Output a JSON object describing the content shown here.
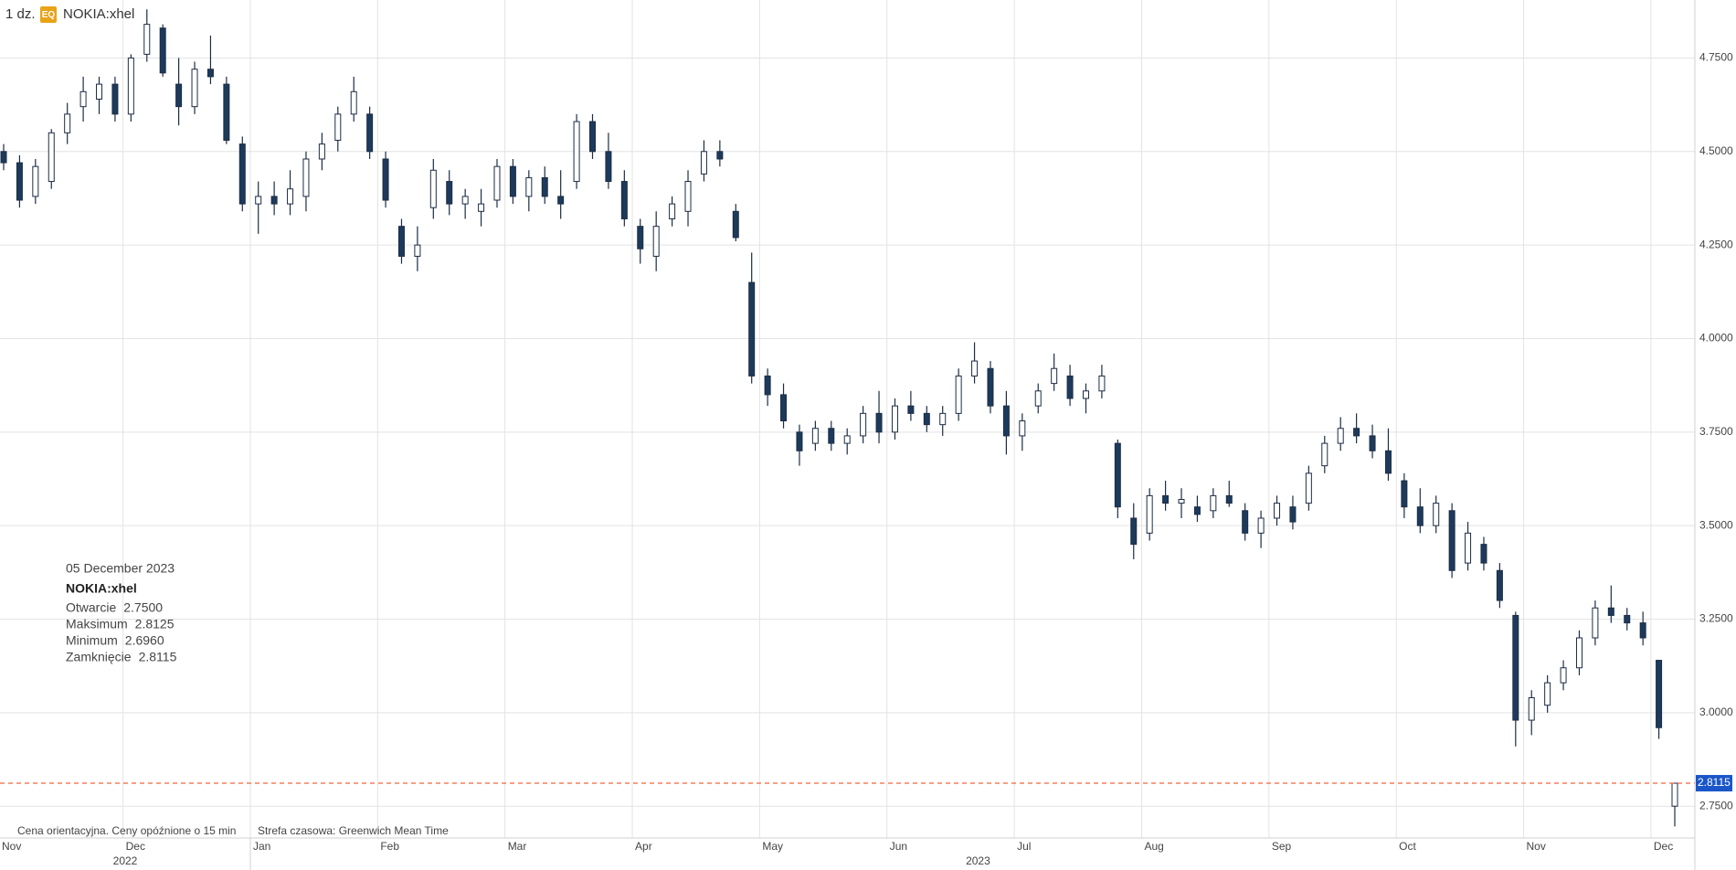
{
  "chart_data": {
    "type": "candlestick",
    "header": {
      "interval": "1 dz.",
      "badge": "EQ",
      "symbol": "NOKIA:xhel"
    },
    "categories": [
      "Nov",
      null,
      null,
      null,
      null,
      null,
      null,
      null,
      "Dec",
      null,
      null,
      null,
      null,
      null,
      null,
      null,
      "Jan",
      null,
      null,
      null,
      null,
      null,
      null,
      null,
      "Feb",
      null,
      null,
      null,
      null,
      null,
      null,
      null,
      "Mar",
      null,
      null,
      null,
      null,
      null,
      null,
      null,
      "Apr",
      null,
      null,
      null,
      null,
      null,
      null,
      null,
      "May",
      null,
      null,
      null,
      null,
      null,
      null,
      null,
      "Jun",
      null,
      null,
      null,
      null,
      null,
      null,
      null,
      "Jul",
      null,
      null,
      null,
      null,
      null,
      null,
      null,
      "Aug",
      null,
      null,
      null,
      null,
      null,
      null,
      null,
      "Sep",
      null,
      null,
      null,
      null,
      null,
      null,
      null,
      "Oct",
      null,
      null,
      null,
      null,
      null,
      null,
      null,
      "Nov",
      null,
      null,
      null,
      null,
      null,
      null,
      null,
      "Dec",
      null
    ],
    "years": [
      "2022",
      "2023"
    ],
    "candles": [
      [
        4.5,
        4.52,
        4.45,
        4.47
      ],
      [
        4.47,
        4.49,
        4.35,
        4.37
      ],
      [
        4.38,
        4.48,
        4.36,
        4.46
      ],
      [
        4.42,
        4.56,
        4.4,
        4.55
      ],
      [
        4.55,
        4.63,
        4.52,
        4.6
      ],
      [
        4.62,
        4.7,
        4.58,
        4.66
      ],
      [
        4.64,
        4.7,
        4.6,
        4.68
      ],
      [
        4.68,
        4.7,
        4.58,
        4.6
      ],
      [
        4.6,
        4.76,
        4.58,
        4.75
      ],
      [
        4.76,
        4.88,
        4.74,
        4.84
      ],
      [
        4.83,
        4.84,
        4.7,
        4.71
      ],
      [
        4.68,
        4.75,
        4.57,
        4.62
      ],
      [
        4.62,
        4.74,
        4.6,
        4.72
      ],
      [
        4.72,
        4.81,
        4.68,
        4.7
      ],
      [
        4.68,
        4.7,
        4.52,
        4.53
      ],
      [
        4.52,
        4.54,
        4.34,
        4.36
      ],
      [
        4.36,
        4.42,
        4.28,
        4.38
      ],
      [
        4.38,
        4.42,
        4.33,
        4.36
      ],
      [
        4.36,
        4.45,
        4.33,
        4.4
      ],
      [
        4.38,
        4.5,
        4.34,
        4.48
      ],
      [
        4.48,
        4.55,
        4.45,
        4.52
      ],
      [
        4.53,
        4.62,
        4.5,
        4.6
      ],
      [
        4.6,
        4.7,
        4.58,
        4.66
      ],
      [
        4.6,
        4.62,
        4.48,
        4.5
      ],
      [
        4.48,
        4.5,
        4.35,
        4.37
      ],
      [
        4.3,
        4.32,
        4.2,
        4.22
      ],
      [
        4.22,
        4.3,
        4.18,
        4.25
      ],
      [
        4.35,
        4.48,
        4.32,
        4.45
      ],
      [
        4.42,
        4.45,
        4.33,
        4.36
      ],
      [
        4.36,
        4.4,
        4.32,
        4.38
      ],
      [
        4.34,
        4.4,
        4.3,
        4.36
      ],
      [
        4.37,
        4.48,
        4.35,
        4.46
      ],
      [
        4.46,
        4.48,
        4.36,
        4.38
      ],
      [
        4.38,
        4.45,
        4.34,
        4.43
      ],
      [
        4.43,
        4.46,
        4.36,
        4.38
      ],
      [
        4.38,
        4.45,
        4.32,
        4.36
      ],
      [
        4.42,
        4.6,
        4.4,
        4.58
      ],
      [
        4.58,
        4.6,
        4.48,
        4.5
      ],
      [
        4.5,
        4.55,
        4.4,
        4.42
      ],
      [
        4.42,
        4.45,
        4.3,
        4.32
      ],
      [
        4.3,
        4.32,
        4.2,
        4.24
      ],
      [
        4.22,
        4.34,
        4.18,
        4.3
      ],
      [
        4.32,
        4.38,
        4.3,
        4.36
      ],
      [
        4.34,
        4.45,
        4.3,
        4.42
      ],
      [
        4.44,
        4.53,
        4.42,
        4.5
      ],
      [
        4.5,
        4.53,
        4.46,
        4.48
      ],
      [
        4.34,
        4.36,
        4.26,
        4.27
      ],
      [
        4.15,
        4.23,
        3.88,
        3.9
      ],
      [
        3.9,
        3.92,
        3.82,
        3.85
      ],
      [
        3.85,
        3.88,
        3.76,
        3.78
      ],
      [
        3.75,
        3.77,
        3.66,
        3.7
      ],
      [
        3.72,
        3.78,
        3.7,
        3.76
      ],
      [
        3.76,
        3.78,
        3.7,
        3.72
      ],
      [
        3.72,
        3.76,
        3.69,
        3.74
      ],
      [
        3.74,
        3.82,
        3.72,
        3.8
      ],
      [
        3.8,
        3.86,
        3.72,
        3.75
      ],
      [
        3.75,
        3.84,
        3.73,
        3.82
      ],
      [
        3.82,
        3.86,
        3.78,
        3.8
      ],
      [
        3.8,
        3.82,
        3.75,
        3.77
      ],
      [
        3.77,
        3.82,
        3.74,
        3.8
      ],
      [
        3.8,
        3.92,
        3.78,
        3.9
      ],
      [
        3.9,
        3.99,
        3.88,
        3.94
      ],
      [
        3.92,
        3.94,
        3.8,
        3.82
      ],
      [
        3.82,
        3.86,
        3.69,
        3.74
      ],
      [
        3.74,
        3.8,
        3.7,
        3.78
      ],
      [
        3.82,
        3.88,
        3.8,
        3.86
      ],
      [
        3.88,
        3.96,
        3.86,
        3.92
      ],
      [
        3.9,
        3.93,
        3.82,
        3.84
      ],
      [
        3.84,
        3.88,
        3.8,
        3.86
      ],
      [
        3.86,
        3.93,
        3.84,
        3.9
      ],
      [
        3.72,
        3.73,
        3.52,
        3.55
      ],
      [
        3.52,
        3.56,
        3.41,
        3.45
      ],
      [
        3.48,
        3.6,
        3.46,
        3.58
      ],
      [
        3.58,
        3.62,
        3.54,
        3.56
      ],
      [
        3.56,
        3.6,
        3.52,
        3.57
      ],
      [
        3.55,
        3.58,
        3.51,
        3.53
      ],
      [
        3.54,
        3.6,
        3.52,
        3.58
      ],
      [
        3.58,
        3.62,
        3.55,
        3.56
      ],
      [
        3.54,
        3.56,
        3.46,
        3.48
      ],
      [
        3.48,
        3.54,
        3.44,
        3.52
      ],
      [
        3.52,
        3.58,
        3.5,
        3.56
      ],
      [
        3.55,
        3.58,
        3.49,
        3.51
      ],
      [
        3.56,
        3.66,
        3.54,
        3.64
      ],
      [
        3.66,
        3.74,
        3.64,
        3.72
      ],
      [
        3.72,
        3.79,
        3.7,
        3.76
      ],
      [
        3.76,
        3.8,
        3.72,
        3.74
      ],
      [
        3.74,
        3.77,
        3.68,
        3.7
      ],
      [
        3.7,
        3.76,
        3.62,
        3.64
      ],
      [
        3.62,
        3.64,
        3.52,
        3.55
      ],
      [
        3.55,
        3.6,
        3.48,
        3.5
      ],
      [
        3.5,
        3.58,
        3.48,
        3.56
      ],
      [
        3.54,
        3.56,
        3.36,
        3.38
      ],
      [
        3.4,
        3.51,
        3.38,
        3.48
      ],
      [
        3.45,
        3.47,
        3.38,
        3.4
      ],
      [
        3.38,
        3.4,
        3.28,
        3.3
      ],
      [
        3.26,
        3.27,
        2.91,
        2.98
      ],
      [
        2.98,
        3.06,
        2.94,
        3.04
      ],
      [
        3.02,
        3.1,
        3.0,
        3.08
      ],
      [
        3.08,
        3.14,
        3.06,
        3.12
      ],
      [
        3.12,
        3.22,
        3.1,
        3.2
      ],
      [
        3.2,
        3.3,
        3.18,
        3.28
      ],
      [
        3.28,
        3.34,
        3.24,
        3.26
      ],
      [
        3.26,
        3.28,
        3.22,
        3.24
      ],
      [
        3.24,
        3.27,
        3.18,
        3.2
      ],
      [
        3.14,
        3.14,
        2.93,
        2.96
      ],
      [
        2.75,
        2.8125,
        2.696,
        2.8115
      ]
    ],
    "up_color": "#ffffff",
    "down_color": "#1d3a5c",
    "edge_color": "#1c2d44",
    "ylim": [
      2.665,
      4.905
    ],
    "yticks": [
      {
        "value": 2.75,
        "label": "2.7500"
      },
      {
        "value": 3.0,
        "label": "3.0000"
      },
      {
        "value": 3.25,
        "label": "3.2500"
      },
      {
        "value": 3.5,
        "label": "3.5000"
      },
      {
        "value": 3.75,
        "label": "3.7500"
      },
      {
        "value": 4.0,
        "label": "4.0000"
      },
      {
        "value": 4.25,
        "label": "4.2500"
      },
      {
        "value": 4.5,
        "label": "4.5000"
      },
      {
        "value": 4.75,
        "label": "4.7500"
      }
    ],
    "grid": true,
    "last_price": {
      "value": 2.8115,
      "label": "2.8115",
      "line_color": "#f0643c",
      "box_color": "#1a56c8"
    },
    "tooltip": {
      "date": "05 December 2023",
      "symbol": "NOKIA:xhel",
      "rows": [
        {
          "label": "Otwarcie",
          "value": "2.7500"
        },
        {
          "label": "Maksimum",
          "value": "2.8125"
        },
        {
          "label": "Minimum",
          "value": "2.6960"
        },
        {
          "label": "Zamknięcie",
          "value": "2.8115"
        }
      ]
    },
    "footer": [
      "Cena orientacyjna. Ceny opóźnione o 15 min",
      "Strefa czasowa: Greenwich Mean Time"
    ]
  }
}
